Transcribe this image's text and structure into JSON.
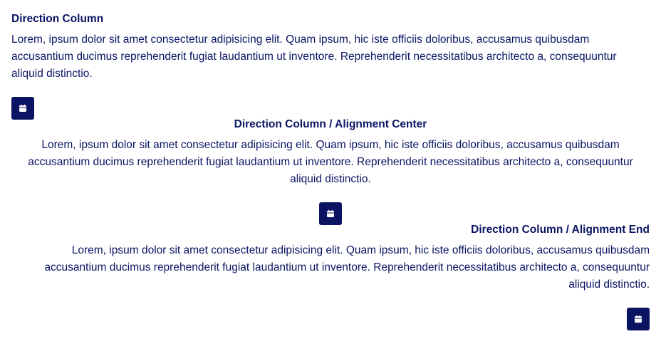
{
  "sections": [
    {
      "title": "Direction Column",
      "text": "Lorem, ipsum dolor sit amet consectetur adipisicing elit. Quam ipsum, hic iste officiis doloribus, accusamus quibusdam accusantium ducimus reprehenderit fugiat laudantium ut inventore. Reprehenderit necessitatibus architecto a, consequuntur aliquid distinctio.",
      "icon": "calendar-icon"
    },
    {
      "title": "Direction Column / Alignment Center",
      "text": "Lorem, ipsum dolor sit amet consectetur adipisicing elit. Quam ipsum, hic iste officiis doloribus, accusamus quibusdam accusantium ducimus reprehenderit fugiat laudantium ut inventore. Reprehenderit necessitatibus architecto a, consequuntur aliquid distinctio.",
      "icon": "calendar-icon"
    },
    {
      "title": "Direction Column / Alignment End",
      "text": "Lorem, ipsum dolor sit amet consectetur adipisicing elit. Quam ipsum, hic iste officiis doloribus, accusamus quibusdam accusantium ducimus reprehenderit fugiat laudantium ut inventore. Reprehenderit necessitatibus architecto a, consequuntur aliquid distinctio.",
      "icon": "calendar-icon"
    }
  ],
  "colors": {
    "text": "#0a1463",
    "button": "#0a1463",
    "background": "#ffffff"
  }
}
